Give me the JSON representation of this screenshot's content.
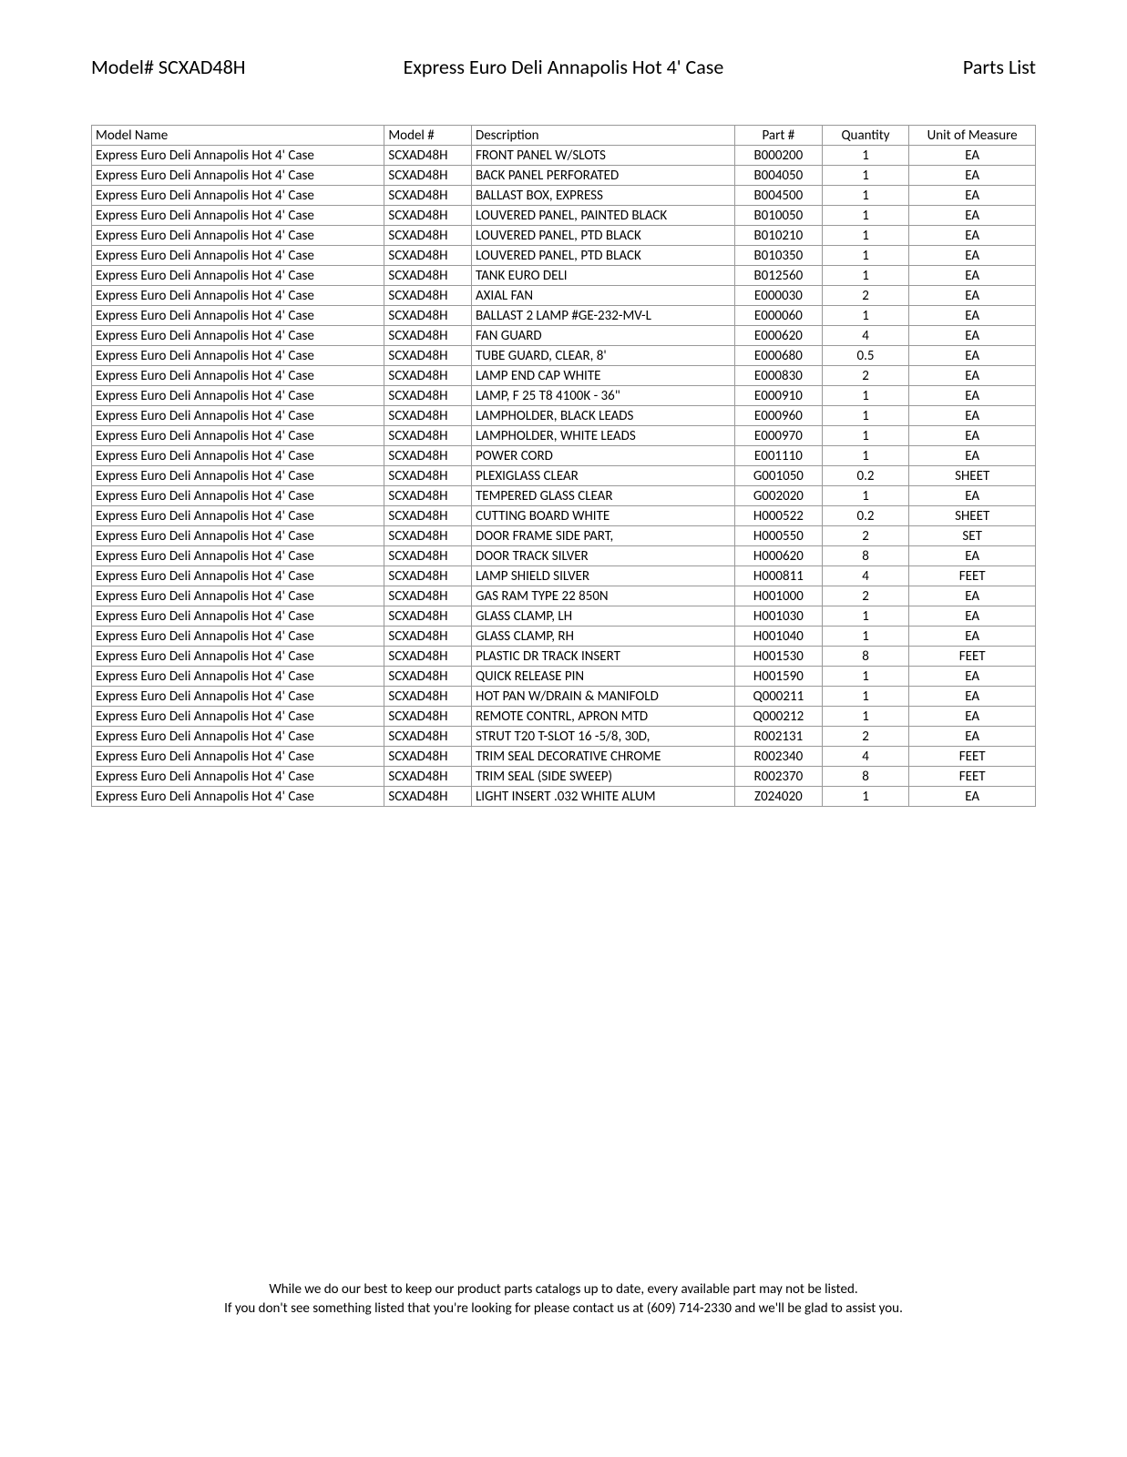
{
  "header": {
    "model_label": "Model# SCXAD48H",
    "title": "Express Euro Deli Annapolis Hot 4' Case",
    "section": "Parts List"
  },
  "columns": [
    "Model Name",
    "Model #",
    "Description",
    "Part #",
    "Quantity",
    "Unit of Measure"
  ],
  "rows": [
    [
      "Express Euro Deli Annapolis Hot 4' Case",
      "SCXAD48H",
      "FRONT PANEL W/SLOTS",
      "B000200",
      "1",
      "EA"
    ],
    [
      "Express Euro Deli Annapolis Hot 4' Case",
      "SCXAD48H",
      "BACK PANEL PERFORATED",
      "B004050",
      "1",
      "EA"
    ],
    [
      "Express Euro Deli Annapolis Hot 4' Case",
      "SCXAD48H",
      "BALLAST BOX, EXPRESS",
      "B004500",
      "1",
      "EA"
    ],
    [
      "Express Euro Deli Annapolis Hot 4' Case",
      "SCXAD48H",
      "LOUVERED PANEL, PAINTED BLACK",
      "B010050",
      "1",
      "EA"
    ],
    [
      "Express Euro Deli Annapolis Hot 4' Case",
      "SCXAD48H",
      "LOUVERED PANEL, PTD BLACK",
      "B010210",
      "1",
      "EA"
    ],
    [
      "Express Euro Deli Annapolis Hot 4' Case",
      "SCXAD48H",
      "LOUVERED PANEL, PTD BLACK",
      "B010350",
      "1",
      "EA"
    ],
    [
      "Express Euro Deli Annapolis Hot 4' Case",
      "SCXAD48H",
      "TANK EURO DELI",
      "B012560",
      "1",
      "EA"
    ],
    [
      "Express Euro Deli Annapolis Hot 4' Case",
      "SCXAD48H",
      "AXIAL FAN",
      "E000030",
      "2",
      "EA"
    ],
    [
      "Express Euro Deli Annapolis Hot 4' Case",
      "SCXAD48H",
      "BALLAST 2 LAMP #GE-232-MV-L",
      "E000060",
      "1",
      "EA"
    ],
    [
      "Express Euro Deli Annapolis Hot 4' Case",
      "SCXAD48H",
      "FAN GUARD",
      "E000620",
      "4",
      "EA"
    ],
    [
      "Express Euro Deli Annapolis Hot 4' Case",
      "SCXAD48H",
      "TUBE GUARD, CLEAR, 8'",
      "E000680",
      "0.5",
      "EA"
    ],
    [
      "Express Euro Deli Annapolis Hot 4' Case",
      "SCXAD48H",
      "LAMP END CAP WHITE",
      "E000830",
      "2",
      "EA"
    ],
    [
      "Express Euro Deli Annapolis Hot 4' Case",
      "SCXAD48H",
      "LAMP, F 25 T8 4100K - 36\"",
      "E000910",
      "1",
      "EA"
    ],
    [
      "Express Euro Deli Annapolis Hot 4' Case",
      "SCXAD48H",
      "LAMPHOLDER, BLACK LEADS",
      "E000960",
      "1",
      "EA"
    ],
    [
      "Express Euro Deli Annapolis Hot 4' Case",
      "SCXAD48H",
      "LAMPHOLDER, WHITE LEADS",
      "E000970",
      "1",
      "EA"
    ],
    [
      "Express Euro Deli Annapolis Hot 4' Case",
      "SCXAD48H",
      "POWER CORD",
      "E001110",
      "1",
      "EA"
    ],
    [
      "Express Euro Deli Annapolis Hot 4' Case",
      "SCXAD48H",
      "PLEXIGLASS CLEAR",
      "G001050",
      "0.2",
      "SHEET"
    ],
    [
      "Express Euro Deli Annapolis Hot 4' Case",
      "SCXAD48H",
      "TEMPERED GLASS CLEAR",
      "G002020",
      "1",
      "EA"
    ],
    [
      "Express Euro Deli Annapolis Hot 4' Case",
      "SCXAD48H",
      "CUTTING BOARD WHITE",
      "H000522",
      "0.2",
      "SHEET"
    ],
    [
      "Express Euro Deli Annapolis Hot 4' Case",
      "SCXAD48H",
      "DOOR FRAME SIDE PART,",
      "H000550",
      "2",
      "SET"
    ],
    [
      "Express Euro Deli Annapolis Hot 4' Case",
      "SCXAD48H",
      "DOOR TRACK SILVER",
      "H000620",
      "8",
      "EA"
    ],
    [
      "Express Euro Deli Annapolis Hot 4' Case",
      "SCXAD48H",
      "LAMP SHIELD SILVER",
      "H000811",
      "4",
      "FEET"
    ],
    [
      "Express Euro Deli Annapolis Hot 4' Case",
      "SCXAD48H",
      "GAS RAM TYPE 22 850N",
      "H001000",
      "2",
      "EA"
    ],
    [
      "Express Euro Deli Annapolis Hot 4' Case",
      "SCXAD48H",
      "GLASS CLAMP, LH",
      "H001030",
      "1",
      "EA"
    ],
    [
      "Express Euro Deli Annapolis Hot 4' Case",
      "SCXAD48H",
      "GLASS CLAMP, RH",
      "H001040",
      "1",
      "EA"
    ],
    [
      "Express Euro Deli Annapolis Hot 4' Case",
      "SCXAD48H",
      "PLASTIC DR TRACK INSERT",
      "H001530",
      "8",
      "FEET"
    ],
    [
      "Express Euro Deli Annapolis Hot 4' Case",
      "SCXAD48H",
      "QUICK RELEASE PIN",
      "H001590",
      "1",
      "EA"
    ],
    [
      "Express Euro Deli Annapolis Hot 4' Case",
      "SCXAD48H",
      "HOT PAN W/DRAIN & MANIFOLD",
      "Q000211",
      "1",
      "EA"
    ],
    [
      "Express Euro Deli Annapolis Hot 4' Case",
      "SCXAD48H",
      "REMOTE CONTRL, APRON MTD",
      "Q000212",
      "1",
      "EA"
    ],
    [
      "Express Euro Deli Annapolis Hot 4' Case",
      "SCXAD48H",
      "STRUT T20 T-SLOT 16 -5/8, 30D,",
      "R002131",
      "2",
      "EA"
    ],
    [
      "Express Euro Deli Annapolis Hot 4' Case",
      "SCXAD48H",
      "TRIM SEAL DECORATIVE CHROME",
      "R002340",
      "4",
      "FEET"
    ],
    [
      "Express Euro Deli Annapolis Hot 4' Case",
      "SCXAD48H",
      "TRIM SEAL (SIDE SWEEP)",
      "R002370",
      "8",
      "FEET"
    ],
    [
      "Express Euro Deli Annapolis Hot 4' Case",
      "SCXAD48H",
      "LIGHT INSERT .032 WHITE ALUM",
      "Z024020",
      "1",
      "EA"
    ]
  ],
  "footer": {
    "line1": "While we do our best to keep our product parts catalogs up to date, every available part may not be listed.",
    "line2": "If you don't see something listed that you're looking for please contact us at (609) 714-2330 and we'll be glad to assist you."
  }
}
